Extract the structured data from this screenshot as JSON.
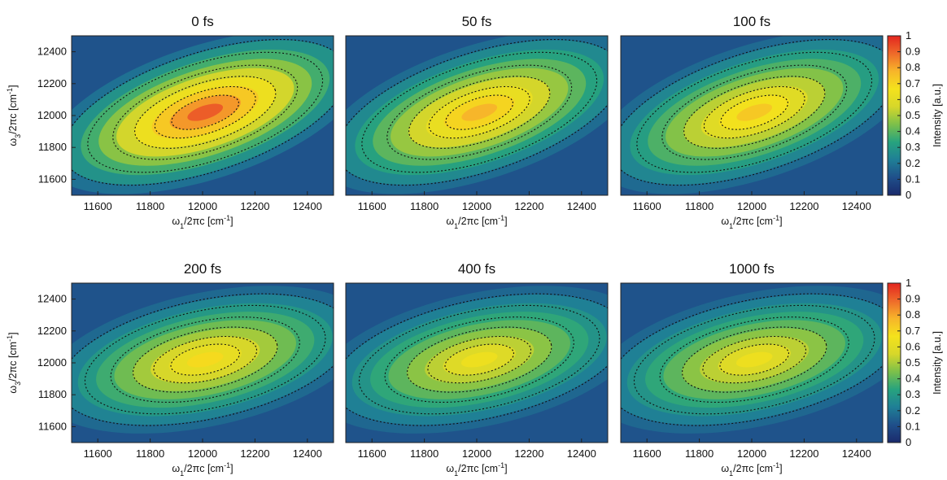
{
  "chart_data": [
    {
      "type": "heatmap",
      "title": "0 fs",
      "peak": 1.0,
      "xlabel": "ω1/2πc [cm-1]",
      "ylabel": "ω3/2πc [cm-1]"
    },
    {
      "type": "heatmap",
      "title": "50 fs",
      "peak": 0.85,
      "xlabel": "ω1/2πc [cm-1]",
      "ylabel": ""
    },
    {
      "type": "heatmap",
      "title": "100 fs",
      "peak": 0.8,
      "xlabel": "ω1/2πc [cm-1]",
      "ylabel": ""
    },
    {
      "type": "heatmap",
      "title": "200 fs",
      "peak": 0.75,
      "xlabel": "ω1/2πc [cm-1]",
      "ylabel": "ω3/2πc [cm-1]"
    },
    {
      "type": "heatmap",
      "title": "400 fs",
      "peak": 0.7,
      "xlabel": "ω1/2πc [cm-1]",
      "ylabel": ""
    },
    {
      "type": "heatmap",
      "title": "1000 fs",
      "peak": 0.7,
      "xlabel": "ω1/2πc [cm-1]",
      "ylabel": ""
    }
  ],
  "axes": {
    "x_ticks": [
      "11600",
      "11800",
      "12000",
      "12200",
      "12400"
    ],
    "y_ticks": [
      "12400",
      "12200",
      "12000",
      "11800",
      "11600"
    ],
    "xlim": [
      11500,
      12500
    ],
    "ylim": [
      11500,
      12500
    ],
    "x_label_main": "ω",
    "x_label_sub": "1",
    "x_label_rest": "/2πc [cm",
    "x_label_sup": "-1",
    "x_label_end": "]",
    "y_label_main": "ω",
    "y_label_sub": "3",
    "y_label_rest": "/2πc [cm",
    "y_label_sup": "-1",
    "y_label_end": "]"
  },
  "colorbar": {
    "label": "Intensity [a.u.]",
    "ticks": [
      "1",
      "0.9",
      "0.8",
      "0.7",
      "0.6",
      "0.5",
      "0.4",
      "0.3",
      "0.2",
      "0.1",
      "0"
    ],
    "colors": [
      "#1a2a6c",
      "#1f4f8a",
      "#1f7f96",
      "#27a37e",
      "#7cc04a",
      "#d7d72a",
      "#f4e21c",
      "#f7b52a",
      "#ee6a2a",
      "#e3251f"
    ]
  }
}
